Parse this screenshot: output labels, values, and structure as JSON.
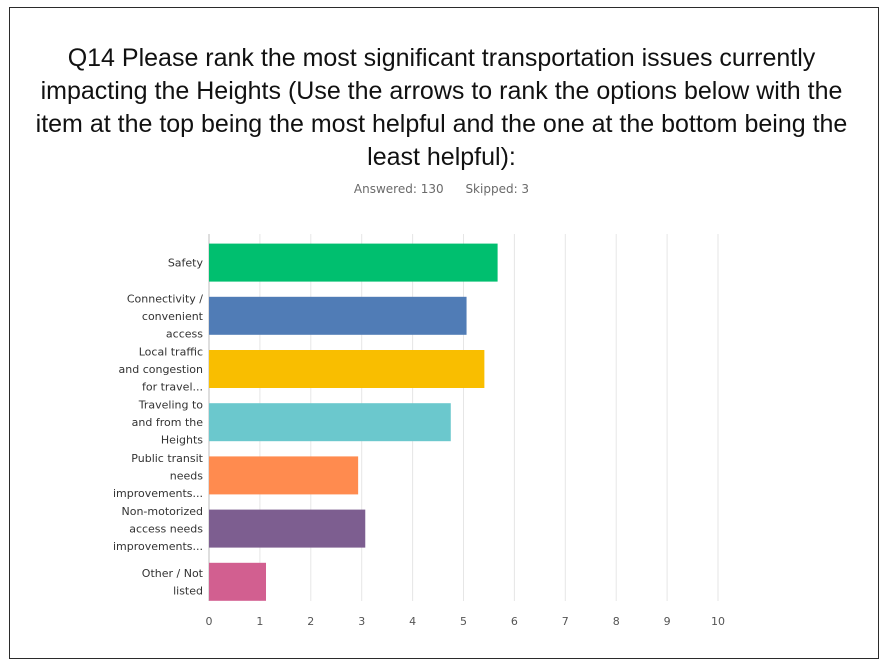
{
  "question": {
    "title_lines": [
      "Q14 Please rank the most significant transportation issues currently",
      "impacting the Heights (Use the arrows to rank the options below with the",
      "item at the top being the most helpful and the one at the bottom being the",
      "least helpful):"
    ],
    "answered": "Answered: 130",
    "skipped": "Skipped: 3"
  },
  "chart_data": {
    "type": "bar",
    "orientation": "horizontal",
    "categories": [
      [
        "Safety"
      ],
      [
        "Connectivity /",
        "convenient",
        "access"
      ],
      [
        "Local traffic",
        "and congestion",
        "for travel..."
      ],
      [
        "Traveling to",
        "and from the",
        "Heights"
      ],
      [
        "Public transit",
        "needs",
        "improvements..."
      ],
      [
        "Non-motorized",
        "access needs",
        "improvements..."
      ],
      [
        "Other / Not",
        "listed"
      ]
    ],
    "values": [
      5.67,
      5.06,
      5.41,
      4.75,
      2.93,
      3.07,
      1.12
    ],
    "colors": [
      "#00bf6f",
      "#507cb6",
      "#f9be00",
      "#6bc8cd",
      "#ff8b4f",
      "#7d5e90",
      "#d25f90"
    ],
    "xlim": [
      0,
      10
    ],
    "xticks": [
      "0",
      "1",
      "2",
      "3",
      "4",
      "5",
      "6",
      "7",
      "8",
      "9",
      "10"
    ],
    "grid": true
  }
}
